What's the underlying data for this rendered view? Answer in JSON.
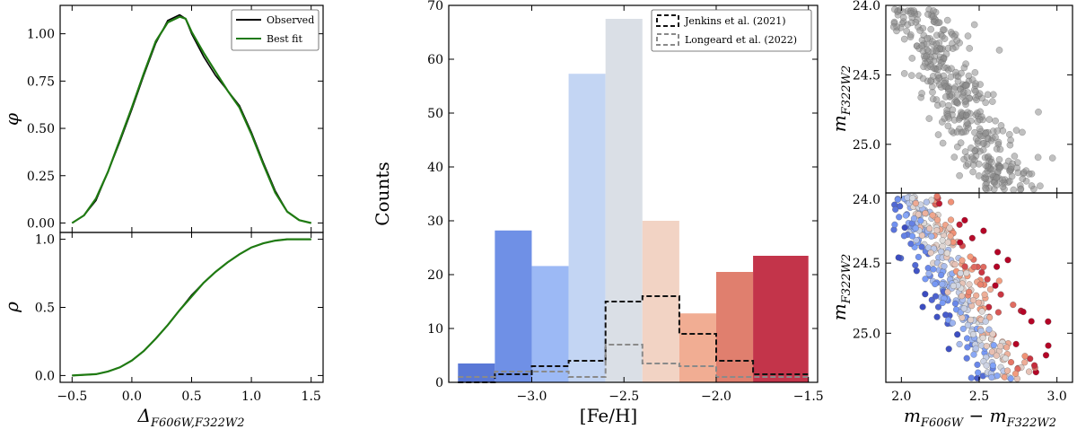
{
  "chart_data": [
    {
      "id": "phi",
      "type": "line",
      "ylabel": "φ",
      "xlabel": "",
      "xlim": [
        -0.6,
        1.6
      ],
      "ylim": [
        -0.05,
        1.15
      ],
      "xticks": [
        -0.5,
        0.0,
        0.5,
        1.0,
        1.5
      ],
      "yticks": [
        0.0,
        0.25,
        0.5,
        0.75,
        1.0
      ],
      "ytick_labels": [
        "0.00",
        "0.25",
        "0.50",
        "0.75",
        "1.00"
      ],
      "legend": [
        "Observed",
        "Best fit"
      ],
      "legend_position": "top-right",
      "colors": {
        "observed": "#000000",
        "fit": "#1f7a12"
      },
      "series": [
        {
          "name": "Observed",
          "x": [
            -0.5,
            -0.4,
            -0.3,
            -0.2,
            -0.1,
            0.0,
            0.1,
            0.2,
            0.3,
            0.4,
            0.45,
            0.5,
            0.6,
            0.7,
            0.8,
            0.9,
            1.0,
            1.1,
            1.2,
            1.3,
            1.4,
            1.5
          ],
          "values": [
            0.0,
            0.04,
            0.12,
            0.27,
            0.43,
            0.6,
            0.78,
            0.95,
            1.07,
            1.1,
            1.08,
            1.0,
            0.88,
            0.78,
            0.7,
            0.62,
            0.48,
            0.32,
            0.17,
            0.06,
            0.015,
            0.0
          ]
        },
        {
          "name": "Best fit",
          "x": [
            -0.5,
            -0.4,
            -0.3,
            -0.2,
            -0.1,
            0.0,
            0.1,
            0.2,
            0.3,
            0.4,
            0.45,
            0.5,
            0.6,
            0.7,
            0.8,
            0.9,
            1.0,
            1.1,
            1.2,
            1.3,
            1.4,
            1.5
          ],
          "values": [
            0.0,
            0.04,
            0.13,
            0.27,
            0.44,
            0.61,
            0.79,
            0.96,
            1.06,
            1.09,
            1.08,
            1.01,
            0.9,
            0.8,
            0.7,
            0.61,
            0.47,
            0.31,
            0.16,
            0.06,
            0.015,
            0.0
          ]
        }
      ]
    },
    {
      "id": "rho",
      "type": "line",
      "ylabel": "ρ",
      "xlabel": "Δ F606W,F322W2",
      "xlim": [
        -0.6,
        1.6
      ],
      "ylim": [
        -0.05,
        1.05
      ],
      "xticks": [
        -0.5,
        0.0,
        0.5,
        1.0,
        1.5
      ],
      "xtick_labels": [
        "−0.5",
        "0.0",
        "0.5",
        "1.0",
        "1.5"
      ],
      "yticks": [
        0.0,
        0.5,
        1.0
      ],
      "ytick_labels": [
        "0.0",
        "0.5",
        "1.0"
      ],
      "series": [
        {
          "name": "Observed",
          "x": [
            -0.5,
            -0.3,
            -0.2,
            -0.1,
            0.0,
            0.1,
            0.2,
            0.3,
            0.4,
            0.5,
            0.6,
            0.7,
            0.8,
            0.9,
            1.0,
            1.1,
            1.2,
            1.3,
            1.4,
            1.5
          ],
          "values": [
            0.0,
            0.01,
            0.03,
            0.06,
            0.11,
            0.18,
            0.27,
            0.37,
            0.48,
            0.59,
            0.68,
            0.76,
            0.83,
            0.89,
            0.94,
            0.97,
            0.99,
            1.0,
            1.0,
            1.0
          ]
        },
        {
          "name": "Best fit",
          "x": [
            -0.5,
            -0.3,
            -0.2,
            -0.1,
            0.0,
            0.1,
            0.2,
            0.3,
            0.4,
            0.5,
            0.6,
            0.7,
            0.8,
            0.9,
            1.0,
            1.1,
            1.2,
            1.3,
            1.4,
            1.5
          ],
          "values": [
            0.0,
            0.01,
            0.03,
            0.06,
            0.11,
            0.18,
            0.27,
            0.37,
            0.48,
            0.58,
            0.68,
            0.76,
            0.83,
            0.89,
            0.94,
            0.97,
            0.99,
            1.0,
            1.0,
            1.0
          ]
        }
      ]
    },
    {
      "id": "hist",
      "type": "bar",
      "xlabel": "[Fe/H]",
      "ylabel": "Counts",
      "xlim": [
        -3.45,
        -1.45
      ],
      "ylim": [
        0,
        70
      ],
      "xticks": [
        -3.0,
        -2.5,
        -2.0,
        -1.5
      ],
      "xtick_labels": [
        "−3.0",
        "−2.5",
        "−2.0",
        "−1.5"
      ],
      "yticks": [
        0,
        10,
        20,
        30,
        40,
        50,
        60,
        70
      ],
      "bin_edges": [
        -3.4,
        -3.2,
        -3.0,
        -2.8,
        -2.6,
        -2.4,
        -2.2,
        -2.0,
        -1.8,
        -1.5
      ],
      "values": [
        3.5,
        28.2,
        21.6,
        57.3,
        67.5,
        30.0,
        12.8,
        20.5,
        23.5
      ],
      "bar_colors": [
        "#5a78d6",
        "#6f90e6",
        "#9cb9f5",
        "#c3d5f3",
        "#dadfe6",
        "#f2d3c4",
        "#f1ad93",
        "#e07f6e",
        "#c3344a"
      ],
      "legend_position": "top-right",
      "step_series": [
        {
          "name": "Jenkins et al. (2021)",
          "color": "#111111",
          "values": [
            0,
            1.5,
            3.0,
            4.0,
            15.0,
            16.0,
            9.0,
            4.0,
            1.5
          ]
        },
        {
          "name": "Longeard et al. (2022)",
          "color": "#8a8a8a",
          "values": [
            1.0,
            2.0,
            2.0,
            1.0,
            7.0,
            3.5,
            3.0,
            1.0,
            1.0
          ]
        }
      ]
    },
    {
      "id": "cmd_top",
      "type": "scatter",
      "ylabel": "m F322W2",
      "xlim": [
        1.9,
        3.1
      ],
      "ylim": [
        25.35,
        24.0
      ],
      "yticks": [
        24.0,
        24.5,
        25.0
      ],
      "ytick_labels": [
        "24.0",
        "24.5",
        "25.0"
      ],
      "xticks": [
        2.0,
        2.5,
        3.0
      ],
      "point_color": "#8c8c8c",
      "n_points": 420
    },
    {
      "id": "cmd_bottom",
      "type": "scatter",
      "xlabel": "m F606W − m F322W2",
      "ylabel": "m F322W2",
      "xlim": [
        1.9,
        3.1
      ],
      "ylim": [
        25.35,
        24.0
      ],
      "xticks": [
        2.0,
        2.5,
        3.0
      ],
      "xtick_labels": [
        "2.0",
        "2.5",
        "3.0"
      ],
      "yticks": [
        24.0,
        24.5,
        25.0
      ],
      "ytick_labels": [
        "24.0",
        "24.5",
        "25.0"
      ],
      "colormap": "coolwarm",
      "n_points": 420
    }
  ]
}
